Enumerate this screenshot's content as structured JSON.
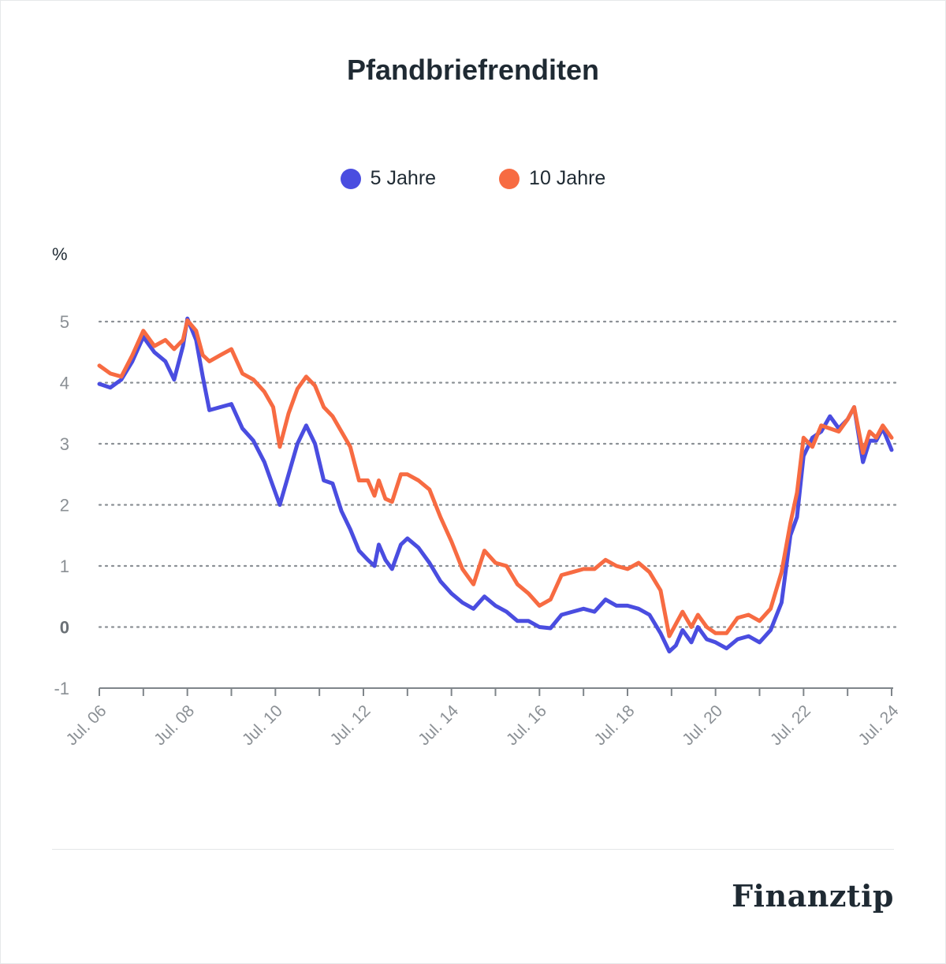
{
  "brand": "Finanztip",
  "chart_data": {
    "type": "line",
    "title": "Pfandbriefrenditen",
    "ylabel": "%",
    "xlabel": "",
    "ylim": [
      -1,
      5.5
    ],
    "yticks": [
      -1,
      0,
      1,
      2,
      3,
      4,
      5
    ],
    "grid": true,
    "legend_position": "top-center",
    "x_range": [
      2006.5,
      2024.5
    ],
    "x_ticks": [
      {
        "x": 2006.5,
        "label": "Jul. 06"
      },
      {
        "x": 2008.5,
        "label": "Jul. 08"
      },
      {
        "x": 2010.5,
        "label": "Jul. 10"
      },
      {
        "x": 2012.5,
        "label": "Jul. 12"
      },
      {
        "x": 2014.5,
        "label": "Jul. 14"
      },
      {
        "x": 2016.5,
        "label": "Jul. 16"
      },
      {
        "x": 2018.5,
        "label": "Jul. 18"
      },
      {
        "x": 2020.5,
        "label": "Jul. 20"
      },
      {
        "x": 2022.5,
        "label": "Jul. 22"
      },
      {
        "x": 2024.5,
        "label": "Jul. 24"
      }
    ],
    "series": [
      {
        "name": "5 Jahre",
        "color": "#4a4de0",
        "points": [
          [
            2006.5,
            3.98
          ],
          [
            2006.75,
            3.92
          ],
          [
            2007.0,
            4.05
          ],
          [
            2007.25,
            4.35
          ],
          [
            2007.5,
            4.75
          ],
          [
            2007.75,
            4.5
          ],
          [
            2008.0,
            4.35
          ],
          [
            2008.2,
            4.05
          ],
          [
            2008.4,
            4.6
          ],
          [
            2008.5,
            5.05
          ],
          [
            2008.7,
            4.7
          ],
          [
            2008.85,
            4.1
          ],
          [
            2009.0,
            3.55
          ],
          [
            2009.25,
            3.6
          ],
          [
            2009.5,
            3.65
          ],
          [
            2009.75,
            3.25
          ],
          [
            2010.0,
            3.05
          ],
          [
            2010.25,
            2.7
          ],
          [
            2010.45,
            2.3
          ],
          [
            2010.6,
            2.0
          ],
          [
            2010.8,
            2.5
          ],
          [
            2011.0,
            3.0
          ],
          [
            2011.2,
            3.3
          ],
          [
            2011.4,
            3.0
          ],
          [
            2011.6,
            2.4
          ],
          [
            2011.8,
            2.35
          ],
          [
            2012.0,
            1.9
          ],
          [
            2012.2,
            1.6
          ],
          [
            2012.4,
            1.25
          ],
          [
            2012.6,
            1.1
          ],
          [
            2012.75,
            1.0
          ],
          [
            2012.85,
            1.35
          ],
          [
            2013.0,
            1.1
          ],
          [
            2013.15,
            0.95
          ],
          [
            2013.35,
            1.35
          ],
          [
            2013.5,
            1.45
          ],
          [
            2013.75,
            1.3
          ],
          [
            2014.0,
            1.05
          ],
          [
            2014.25,
            0.75
          ],
          [
            2014.5,
            0.55
          ],
          [
            2014.75,
            0.4
          ],
          [
            2015.0,
            0.3
          ],
          [
            2015.25,
            0.5
          ],
          [
            2015.5,
            0.35
          ],
          [
            2015.75,
            0.25
          ],
          [
            2016.0,
            0.1
          ],
          [
            2016.25,
            0.1
          ],
          [
            2016.5,
            0.0
          ],
          [
            2016.75,
            -0.02
          ],
          [
            2017.0,
            0.2
          ],
          [
            2017.25,
            0.25
          ],
          [
            2017.5,
            0.3
          ],
          [
            2017.75,
            0.25
          ],
          [
            2018.0,
            0.45
          ],
          [
            2018.25,
            0.35
          ],
          [
            2018.5,
            0.35
          ],
          [
            2018.75,
            0.3
          ],
          [
            2019.0,
            0.2
          ],
          [
            2019.25,
            -0.1
          ],
          [
            2019.45,
            -0.4
          ],
          [
            2019.6,
            -0.3
          ],
          [
            2019.75,
            -0.05
          ],
          [
            2019.95,
            -0.25
          ],
          [
            2020.1,
            0.0
          ],
          [
            2020.3,
            -0.2
          ],
          [
            2020.5,
            -0.25
          ],
          [
            2020.75,
            -0.35
          ],
          [
            2021.0,
            -0.2
          ],
          [
            2021.25,
            -0.15
          ],
          [
            2021.5,
            -0.25
          ],
          [
            2021.75,
            -0.05
          ],
          [
            2022.0,
            0.4
          ],
          [
            2022.2,
            1.5
          ],
          [
            2022.35,
            1.8
          ],
          [
            2022.5,
            2.8
          ],
          [
            2022.7,
            3.1
          ],
          [
            2022.9,
            3.2
          ],
          [
            2023.1,
            3.45
          ],
          [
            2023.3,
            3.25
          ],
          [
            2023.5,
            3.4
          ],
          [
            2023.65,
            3.6
          ],
          [
            2023.85,
            2.7
          ],
          [
            2024.0,
            3.05
          ],
          [
            2024.15,
            3.05
          ],
          [
            2024.3,
            3.25
          ],
          [
            2024.5,
            2.9
          ]
        ]
      },
      {
        "name": "10 Jahre",
        "color": "#f76b42",
        "points": [
          [
            2006.5,
            4.28
          ],
          [
            2006.75,
            4.15
          ],
          [
            2007.0,
            4.1
          ],
          [
            2007.25,
            4.45
          ],
          [
            2007.5,
            4.85
          ],
          [
            2007.75,
            4.6
          ],
          [
            2008.0,
            4.7
          ],
          [
            2008.2,
            4.55
          ],
          [
            2008.4,
            4.7
          ],
          [
            2008.5,
            5.02
          ],
          [
            2008.7,
            4.85
          ],
          [
            2008.85,
            4.45
          ],
          [
            2009.0,
            4.35
          ],
          [
            2009.25,
            4.45
          ],
          [
            2009.5,
            4.55
          ],
          [
            2009.75,
            4.15
          ],
          [
            2010.0,
            4.05
          ],
          [
            2010.25,
            3.85
          ],
          [
            2010.45,
            3.6
          ],
          [
            2010.6,
            2.95
          ],
          [
            2010.8,
            3.5
          ],
          [
            2011.0,
            3.9
          ],
          [
            2011.2,
            4.1
          ],
          [
            2011.4,
            3.95
          ],
          [
            2011.6,
            3.6
          ],
          [
            2011.8,
            3.45
          ],
          [
            2012.0,
            3.2
          ],
          [
            2012.2,
            2.95
          ],
          [
            2012.4,
            2.4
          ],
          [
            2012.6,
            2.4
          ],
          [
            2012.75,
            2.15
          ],
          [
            2012.85,
            2.4
          ],
          [
            2013.0,
            2.1
          ],
          [
            2013.15,
            2.05
          ],
          [
            2013.35,
            2.5
          ],
          [
            2013.5,
            2.5
          ],
          [
            2013.75,
            2.4
          ],
          [
            2014.0,
            2.25
          ],
          [
            2014.25,
            1.8
          ],
          [
            2014.5,
            1.4
          ],
          [
            2014.75,
            0.95
          ],
          [
            2015.0,
            0.7
          ],
          [
            2015.25,
            1.25
          ],
          [
            2015.5,
            1.05
          ],
          [
            2015.75,
            1.0
          ],
          [
            2016.0,
            0.7
          ],
          [
            2016.25,
            0.55
          ],
          [
            2016.5,
            0.35
          ],
          [
            2016.75,
            0.45
          ],
          [
            2017.0,
            0.85
          ],
          [
            2017.25,
            0.9
          ],
          [
            2017.5,
            0.95
          ],
          [
            2017.75,
            0.95
          ],
          [
            2018.0,
            1.1
          ],
          [
            2018.25,
            1.0
          ],
          [
            2018.5,
            0.95
          ],
          [
            2018.75,
            1.05
          ],
          [
            2019.0,
            0.9
          ],
          [
            2019.25,
            0.6
          ],
          [
            2019.45,
            -0.15
          ],
          [
            2019.6,
            0.05
          ],
          [
            2019.75,
            0.25
          ],
          [
            2019.95,
            0.0
          ],
          [
            2020.1,
            0.2
          ],
          [
            2020.3,
            0.0
          ],
          [
            2020.5,
            -0.1
          ],
          [
            2020.75,
            -0.1
          ],
          [
            2021.0,
            0.15
          ],
          [
            2021.25,
            0.2
          ],
          [
            2021.5,
            0.1
          ],
          [
            2021.75,
            0.3
          ],
          [
            2022.0,
            0.9
          ],
          [
            2022.2,
            1.7
          ],
          [
            2022.35,
            2.2
          ],
          [
            2022.5,
            3.1
          ],
          [
            2022.7,
            2.95
          ],
          [
            2022.9,
            3.3
          ],
          [
            2023.1,
            3.25
          ],
          [
            2023.3,
            3.2
          ],
          [
            2023.5,
            3.4
          ],
          [
            2023.65,
            3.6
          ],
          [
            2023.85,
            2.85
          ],
          [
            2024.0,
            3.2
          ],
          [
            2024.15,
            3.1
          ],
          [
            2024.3,
            3.3
          ],
          [
            2024.5,
            3.1
          ]
        ]
      }
    ]
  }
}
